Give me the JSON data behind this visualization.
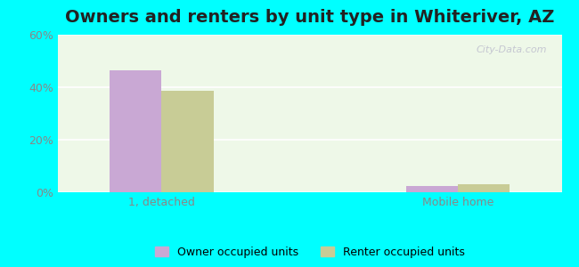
{
  "title": "Owners and renters by unit type in Whiteriver, AZ",
  "title_fontsize": 14,
  "categories": [
    "1, detached",
    "Mobile home"
  ],
  "owner_values": [
    46.5,
    2.5
  ],
  "renter_values": [
    38.5,
    3.2
  ],
  "owner_color": "#c9a8d4",
  "renter_color": "#c8cc96",
  "ylim": [
    0,
    60
  ],
  "yticks": [
    0,
    20,
    40,
    60
  ],
  "ytick_labels": [
    "0%",
    "20%",
    "40%",
    "60%"
  ],
  "legend_owner": "Owner occupied units",
  "legend_renter": "Renter occupied units",
  "outer_bg": "#00ffff",
  "axes_bg": "#eef8e8",
  "bar_width": 0.35,
  "group_positions": [
    1.0,
    3.0
  ],
  "xlim": [
    0.3,
    3.7
  ],
  "watermark": "City-Data.com"
}
